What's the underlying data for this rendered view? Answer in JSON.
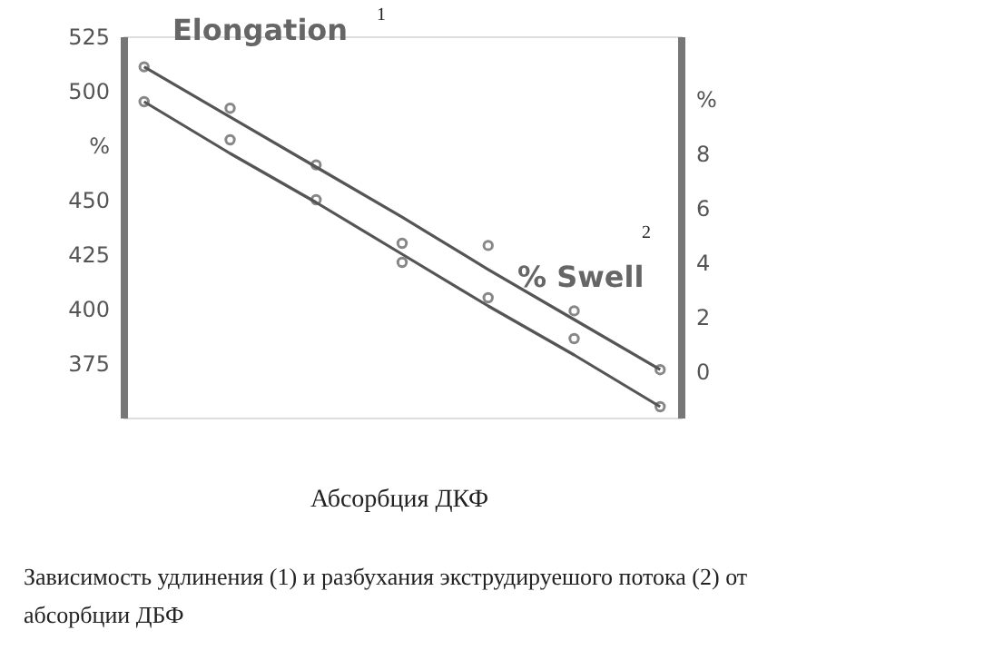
{
  "chart_data": {
    "type": "scatter",
    "xlabel": "Абсорбция ДКФ",
    "categories": [
      null,
      null,
      null,
      null,
      null,
      null,
      null
    ],
    "series": [
      {
        "name": "Elongation",
        "color": "#555555",
        "values": [
          511,
          492,
          466,
          430,
          429,
          399,
          372
        ]
      },
      {
        "type": "line",
        "marker": "none",
        "color": "#555555",
        "values": [
          511,
          488,
          465,
          442,
          418,
          395,
          372
        ]
      },
      {
        "name": "% Swell",
        "axis": "y2",
        "color": "#555555",
        "values": [
          9.9,
          8.5,
          6.3,
          4.0,
          2.7,
          1.2,
          -1.3
        ]
      },
      {
        "type": "line",
        "marker": "none",
        "axis": "y2",
        "color": "#555555",
        "values": [
          9.9,
          8.0,
          6.2,
          4.3,
          2.4,
          0.6,
          -1.3
        ]
      }
    ],
    "ylim": [
      350,
      525
    ],
    "yticks": [
      525,
      500,
      {
        "value": 475,
        "label": "%"
      },
      450,
      425,
      400,
      375,
      {
        "value": 350,
        "label": null
      }
    ],
    "y2lim": [
      -1.7,
      12.3
    ],
    "y2ticks": [
      0,
      2,
      4,
      6,
      8,
      {
        "value": 10,
        "label": "%"
      }
    ],
    "marker": "circle",
    "line_style": "solid",
    "annotations": [
      "1",
      "2",
      "Зависимость удлинения (1) и разбухания экструдируешого потока (2) от",
      "абсорбции ДБФ"
    ]
  }
}
